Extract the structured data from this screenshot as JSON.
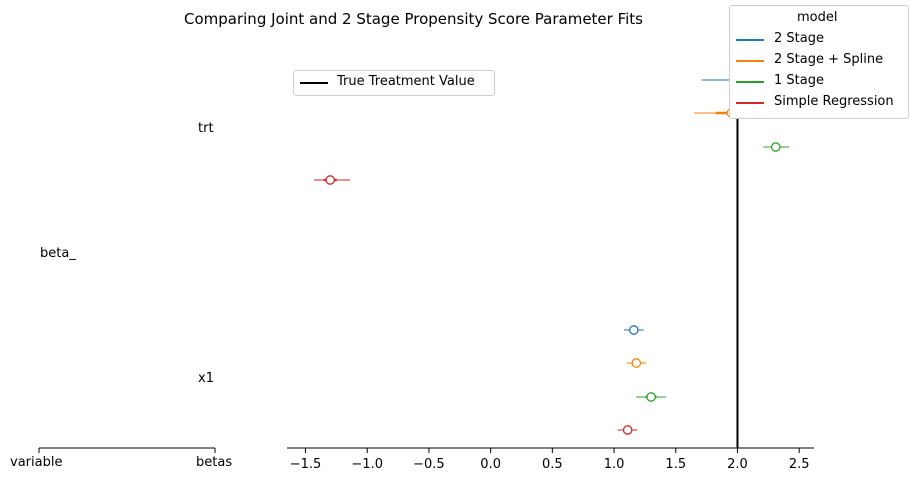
{
  "chart_data": {
    "type": "forest",
    "title": "Comparing Joint and 2 Stage Propensity Score Parameter Fits",
    "left_panel": {
      "tick_labels": [
        "variable",
        "betas"
      ],
      "group_label": "beta_",
      "row_labels": [
        "trt",
        "x1"
      ]
    },
    "xlim": [
      -1.65,
      2.62
    ],
    "xticks": [
      -1.5,
      -1.0,
      -0.5,
      0.0,
      0.5,
      1.0,
      1.5,
      2.0,
      2.5
    ],
    "xtick_labels": [
      "−1.5",
      "−1.0",
      "−0.5",
      "0.0",
      "0.5",
      "1.0",
      "1.5",
      "2.0",
      "2.5"
    ],
    "reference_line": {
      "value": 2.0,
      "label": "True Treatment Value",
      "color": "#000000"
    },
    "legend": {
      "title": "model",
      "placement": "top-right",
      "entries": [
        {
          "name": "2 Stage",
          "color": "#1f77b4"
        },
        {
          "name": "2 Stage + Spline",
          "color": "#ff7f0e"
        },
        {
          "name": "1 Stage",
          "color": "#2ca02c"
        },
        {
          "name": "Simple Regression",
          "color": "#d62728"
        }
      ]
    },
    "estimates": [
      {
        "variable": "trt",
        "model": "2 Stage",
        "mean": 2.06,
        "ci": [
          1.71,
          2.4
        ]
      },
      {
        "variable": "trt",
        "model": "2 Stage + Spline",
        "mean": 1.95,
        "ci": [
          1.65,
          2.35
        ]
      },
      {
        "variable": "trt",
        "model": "1 Stage",
        "mean": 2.31,
        "ci": [
          2.21,
          2.42
        ]
      },
      {
        "variable": "trt",
        "model": "Simple Regression",
        "mean": -1.3,
        "ci": [
          -1.43,
          -1.14
        ]
      },
      {
        "variable": "x1",
        "model": "2 Stage",
        "mean": 1.16,
        "ci": [
          1.08,
          1.24
        ]
      },
      {
        "variable": "x1",
        "model": "2 Stage + Spline",
        "mean": 1.18,
        "ci": [
          1.1,
          1.26
        ]
      },
      {
        "variable": "x1",
        "model": "1 Stage",
        "mean": 1.3,
        "ci": [
          1.18,
          1.42
        ]
      },
      {
        "variable": "x1",
        "model": "Simple Regression",
        "mean": 1.11,
        "ci": [
          1.03,
          1.19
        ]
      }
    ]
  }
}
